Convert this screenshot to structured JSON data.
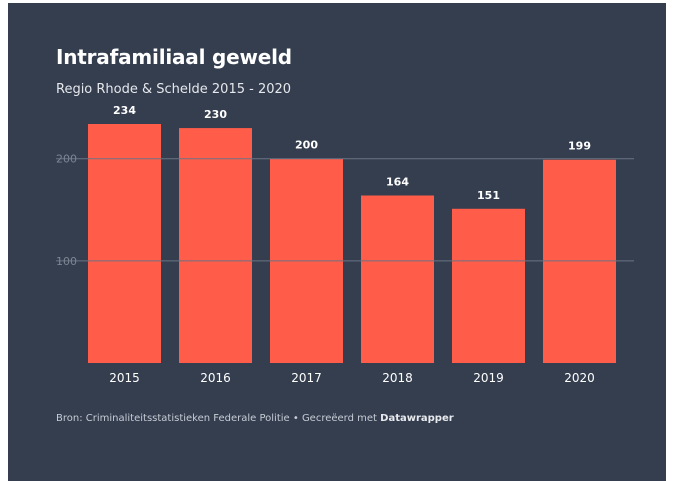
{
  "header": {
    "title": "Intrafamiliaal geweld",
    "subtitle": "Regio Rhode & Schelde 2015 - 2020"
  },
  "footer": {
    "source": "Bron: Criminaliteitsstatistieken Federale Politie • Gecreëerd met ",
    "tool": "Datawrapper"
  },
  "colors": {
    "background": "#343e4f",
    "bar": "#ff5d4a",
    "gridline": "#6a7383",
    "text": "#ffffff"
  },
  "chart_data": {
    "type": "bar",
    "categories": [
      "2015",
      "2016",
      "2017",
      "2018",
      "2019",
      "2020"
    ],
    "values": [
      234,
      230,
      200,
      164,
      151,
      199
    ],
    "yticks": [
      100,
      200
    ],
    "ylim": [
      0,
      234
    ],
    "grid": true
  }
}
